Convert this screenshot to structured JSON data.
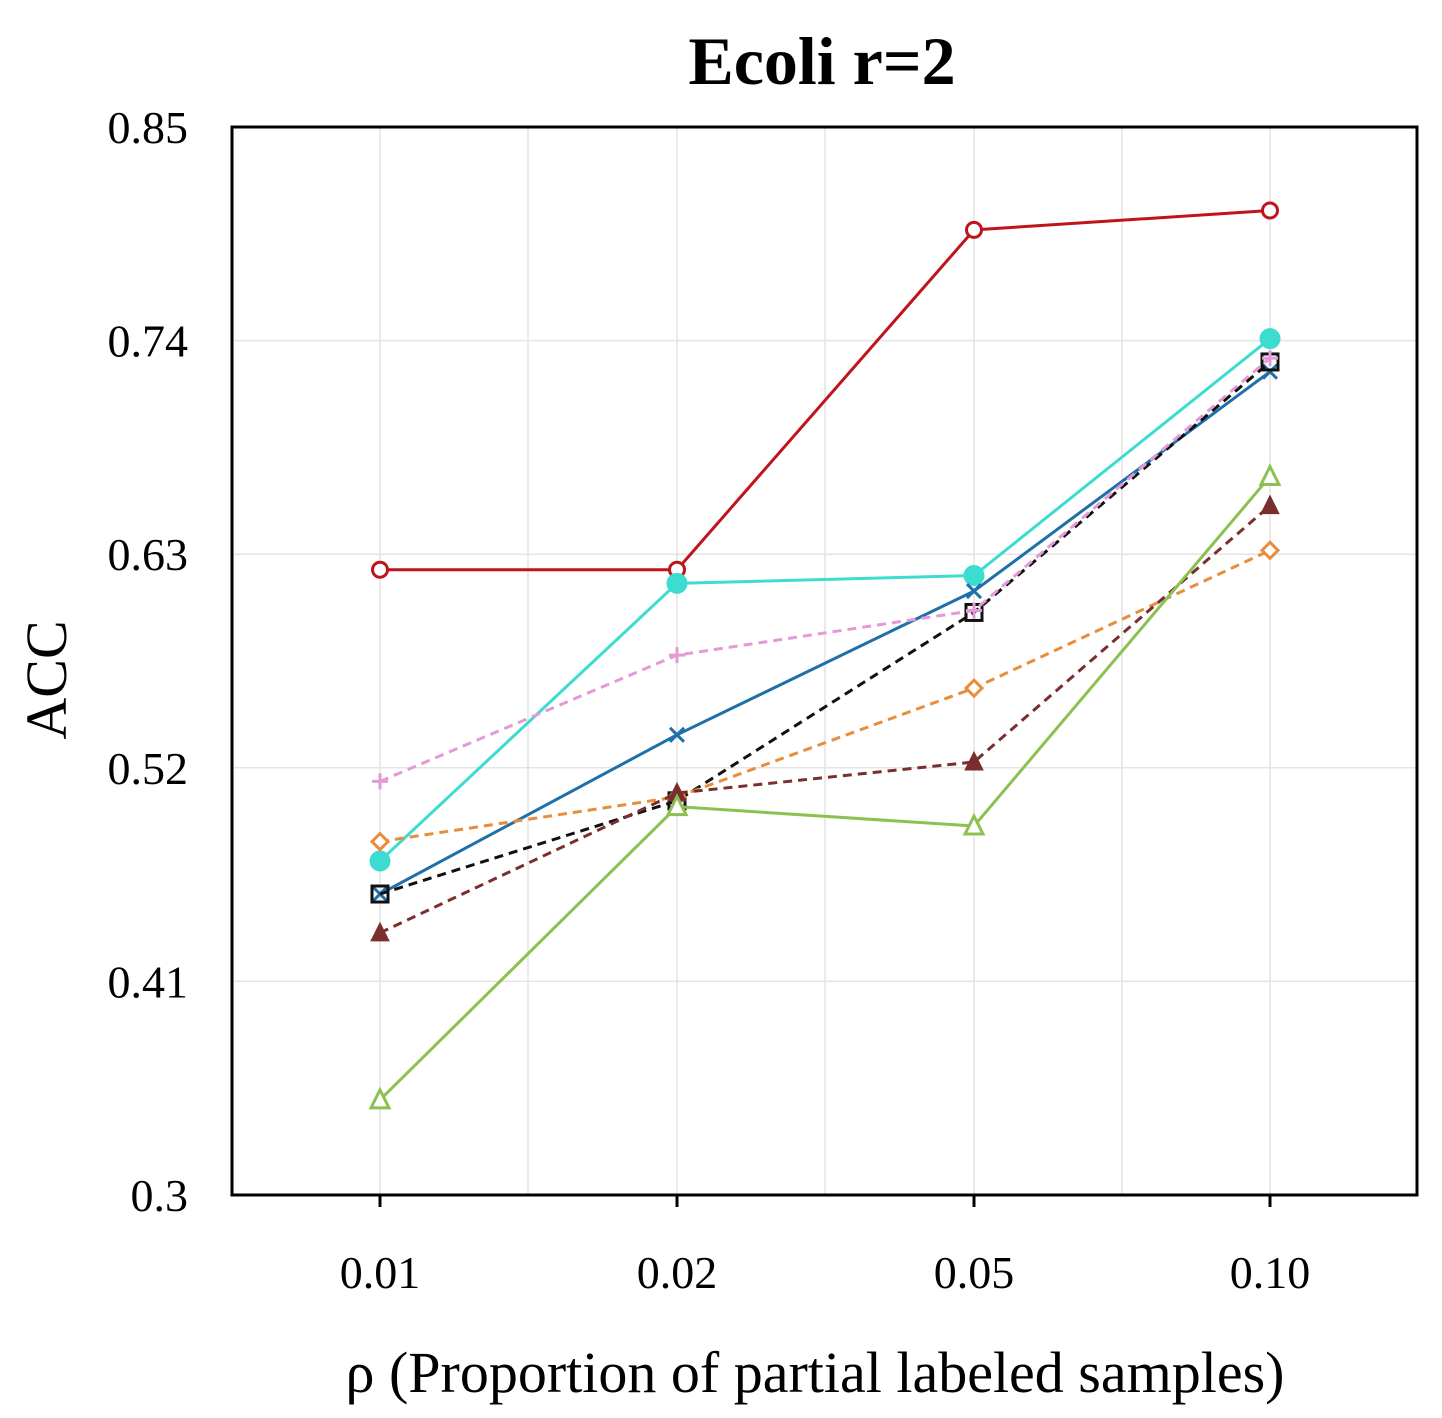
{
  "chart_data": {
    "type": "line",
    "title": "Ecoli r=2",
    "xlabel": "ρ (Proportion of partial labeled samples)",
    "ylabel": "ACC",
    "categories": [
      "0.01",
      "0.02",
      "0.05",
      "0.10"
    ],
    "yticks": [
      "0.3",
      "0.41",
      "0.52",
      "0.63",
      "0.74",
      "0.85"
    ],
    "ylim": [
      0.3,
      0.85
    ],
    "grid": true,
    "legend": "none",
    "series": [
      {
        "values": [
          0.622,
          0.622,
          0.797,
          0.807
        ],
        "color": "#c0141c",
        "dash": "solid",
        "marker": "circle-open"
      },
      {
        "values": [
          0.472,
          0.615,
          0.619,
          0.741
        ],
        "color": "#3ddcd0",
        "dash": "solid",
        "marker": "circle-filled"
      },
      {
        "values": [
          0.455,
          0.537,
          0.611,
          0.724
        ],
        "color": "#1f6fa8",
        "dash": "solid",
        "marker": "x"
      },
      {
        "values": [
          0.455,
          0.503,
          0.6,
          0.729
        ],
        "color": "#111111",
        "dash": "dashed",
        "marker": "square-open"
      },
      {
        "values": [
          0.513,
          0.578,
          0.601,
          0.731
        ],
        "color": "#e39ad6",
        "dash": "dashed",
        "marker": "plus"
      },
      {
        "values": [
          0.482,
          0.505,
          0.561,
          0.632
        ],
        "color": "#e88d3c",
        "dash": "dashed",
        "marker": "diamond-open"
      },
      {
        "values": [
          0.435,
          0.507,
          0.523,
          0.655
        ],
        "color": "#7a2e2e",
        "dash": "dashed",
        "marker": "triangle-filled"
      },
      {
        "values": [
          0.349,
          0.5,
          0.49,
          0.67
        ],
        "color": "#8cc152",
        "dash": "solid",
        "marker": "triangle-open"
      }
    ]
  }
}
